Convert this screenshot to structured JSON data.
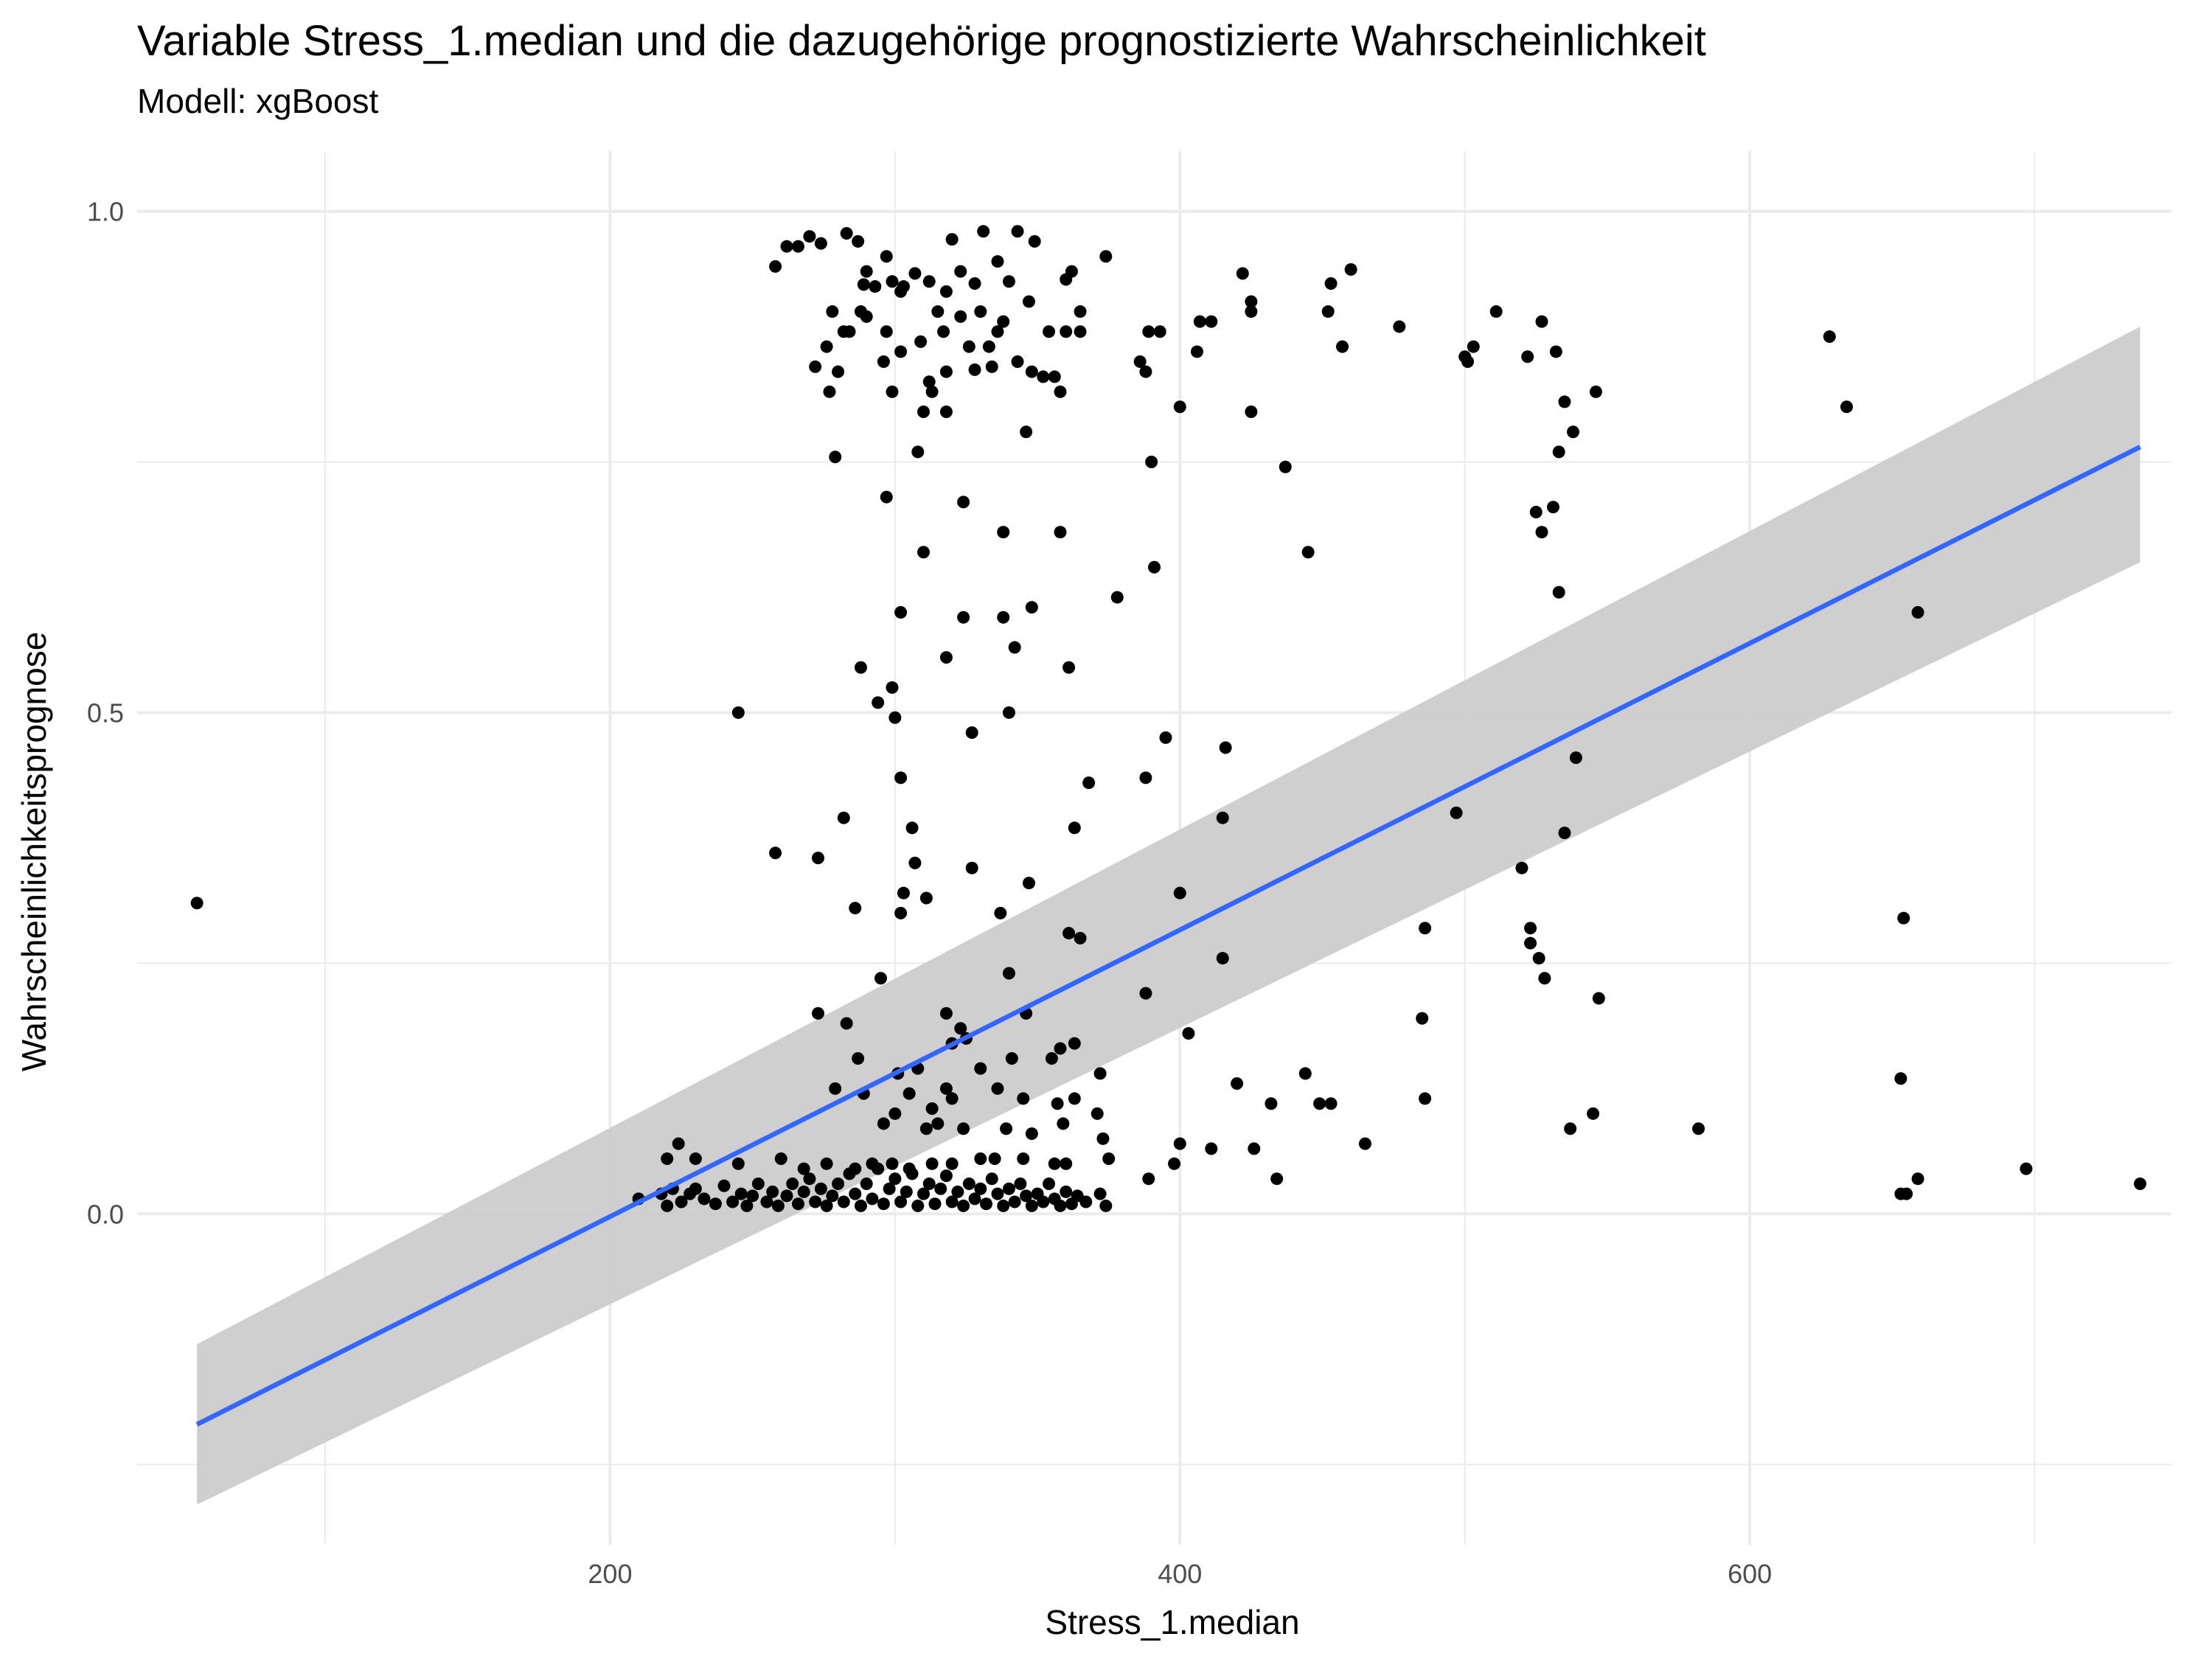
{
  "chart_data": {
    "type": "scatter",
    "title": "Variable Stress_1.median und die dazugehörige prognostizierte Wahrscheinlichkeit",
    "subtitle": "Modell: xgBoost",
    "xlabel": "Stress_1.median",
    "ylabel": "Wahrscheinlichkeitsprognose",
    "xlim": [
      34,
      748
    ],
    "ylim": [
      -0.33,
      1.06
    ],
    "x_ticks": [
      200,
      400,
      600
    ],
    "y_ticks": [
      0.0,
      0.5,
      1.0
    ],
    "x_tick_labels": [
      "200",
      "400",
      "600"
    ],
    "y_tick_labels": [
      "0.0",
      "0.5",
      "1.0"
    ],
    "grid": true,
    "colors": {
      "points": "#000000",
      "line": "#3366ff",
      "band": "#cccccc",
      "grid": "#ebebeb",
      "tick_text": "#4d4d4d"
    },
    "trend": {
      "x": [
        55,
        737
      ],
      "y": [
        -0.21,
        0.765
      ],
      "band_lower": [
        -0.29,
        0.65
      ],
      "band_upper": [
        -0.13,
        0.885
      ]
    },
    "points": [
      [
        55,
        0.31
      ],
      [
        245,
        0.5
      ],
      [
        258,
        0.945
      ],
      [
        262,
        0.965
      ],
      [
        266,
        0.965
      ],
      [
        270,
        0.975
      ],
      [
        274,
        0.968
      ],
      [
        283,
        0.978
      ],
      [
        287,
        0.97
      ],
      [
        297,
        0.955
      ],
      [
        320,
        0.972
      ],
      [
        331,
        0.98
      ],
      [
        343,
        0.98
      ],
      [
        349,
        0.97
      ],
      [
        374,
        0.955
      ],
      [
        290,
        0.94
      ],
      [
        312,
        0.93
      ],
      [
        323,
        0.94
      ],
      [
        336,
        0.95
      ],
      [
        362,
        0.94
      ],
      [
        422,
        0.938
      ],
      [
        453,
        0.928
      ],
      [
        460,
        0.942
      ],
      [
        289,
        0.927
      ],
      [
        293,
        0.925
      ],
      [
        299,
        0.93
      ],
      [
        303,
        0.925
      ],
      [
        307,
        0.938
      ],
      [
        318,
        0.92
      ],
      [
        328,
        0.928
      ],
      [
        340,
        0.93
      ],
      [
        360,
        0.932
      ],
      [
        278,
        0.9
      ],
      [
        288,
        0.9
      ],
      [
        302,
        0.92
      ],
      [
        315,
        0.9
      ],
      [
        330,
        0.9
      ],
      [
        347,
        0.91
      ],
      [
        365,
        0.9
      ],
      [
        425,
        0.91
      ],
      [
        425,
        0.9
      ],
      [
        452,
        0.9
      ],
      [
        511,
        0.9
      ],
      [
        284,
        0.88
      ],
      [
        290,
        0.895
      ],
      [
        297,
        0.88
      ],
      [
        317,
        0.88
      ],
      [
        323,
        0.895
      ],
      [
        338,
        0.89
      ],
      [
        354,
        0.88
      ],
      [
        360,
        0.88
      ],
      [
        365,
        0.88
      ],
      [
        389,
        0.88
      ],
      [
        393,
        0.88
      ],
      [
        407,
        0.89
      ],
      [
        411,
        0.89
      ],
      [
        477,
        0.885
      ],
      [
        527,
        0.89
      ],
      [
        628,
        0.875
      ],
      [
        276,
        0.865
      ],
      [
        282,
        0.88
      ],
      [
        302,
        0.86
      ],
      [
        309,
        0.87
      ],
      [
        326,
        0.865
      ],
      [
        333,
        0.865
      ],
      [
        336,
        0.88
      ],
      [
        406,
        0.86
      ],
      [
        457,
        0.865
      ],
      [
        500,
        0.855
      ],
      [
        503,
        0.865
      ],
      [
        522,
        0.855
      ],
      [
        532,
        0.86
      ],
      [
        280,
        0.84
      ],
      [
        296,
        0.85
      ],
      [
        318,
        0.84
      ],
      [
        328,
        0.842
      ],
      [
        334,
        0.845
      ],
      [
        343,
        0.85
      ],
      [
        348,
        0.84
      ],
      [
        352,
        0.835
      ],
      [
        356,
        0.835
      ],
      [
        386,
        0.85
      ],
      [
        388,
        0.84
      ],
      [
        501,
        0.85
      ],
      [
        272,
        0.845
      ],
      [
        277,
        0.82
      ],
      [
        299,
        0.82
      ],
      [
        313,
        0.82
      ],
      [
        312,
        0.83
      ],
      [
        310,
        0.8
      ],
      [
        318,
        0.8
      ],
      [
        358,
        0.82
      ],
      [
        400,
        0.805
      ],
      [
        425,
        0.8
      ],
      [
        535,
        0.81
      ],
      [
        546,
        0.82
      ],
      [
        634,
        0.805
      ],
      [
        279,
        0.755
      ],
      [
        308,
        0.76
      ],
      [
        346,
        0.78
      ],
      [
        390,
        0.75
      ],
      [
        437,
        0.745
      ],
      [
        538,
        0.78
      ],
      [
        533,
        0.76
      ],
      [
        297,
        0.715
      ],
      [
        324,
        0.71
      ],
      [
        338,
        0.68
      ],
      [
        358,
        0.68
      ],
      [
        525,
        0.7
      ],
      [
        531,
        0.705
      ],
      [
        527,
        0.68
      ],
      [
        310,
        0.66
      ],
      [
        391,
        0.645
      ],
      [
        445,
        0.66
      ],
      [
        302,
        0.6
      ],
      [
        324,
        0.595
      ],
      [
        338,
        0.595
      ],
      [
        348,
        0.605
      ],
      [
        378,
        0.615
      ],
      [
        533,
        0.62
      ],
      [
        659,
        0.6
      ],
      [
        318,
        0.555
      ],
      [
        342,
        0.565
      ],
      [
        288,
        0.545
      ],
      [
        299,
        0.525
      ],
      [
        294,
        0.51
      ],
      [
        300,
        0.495
      ],
      [
        327,
        0.48
      ],
      [
        340,
        0.5
      ],
      [
        361,
        0.545
      ],
      [
        302,
        0.435
      ],
      [
        368,
        0.43
      ],
      [
        388,
        0.435
      ],
      [
        395,
        0.475
      ],
      [
        416,
        0.465
      ],
      [
        539,
        0.455
      ],
      [
        258,
        0.36
      ],
      [
        273,
        0.355
      ],
      [
        282,
        0.395
      ],
      [
        306,
        0.385
      ],
      [
        307,
        0.35
      ],
      [
        303,
        0.32
      ],
      [
        327,
        0.345
      ],
      [
        347,
        0.33
      ],
      [
        363,
        0.385
      ],
      [
        400,
        0.32
      ],
      [
        415,
        0.395
      ],
      [
        497,
        0.4
      ],
      [
        535,
        0.38
      ],
      [
        286,
        0.305
      ],
      [
        302,
        0.3
      ],
      [
        311,
        0.315
      ],
      [
        337,
        0.3
      ],
      [
        361,
        0.28
      ],
      [
        365,
        0.275
      ],
      [
        486,
        0.285
      ],
      [
        520,
        0.345
      ],
      [
        523,
        0.285
      ],
      [
        523,
        0.27
      ],
      [
        526,
        0.255
      ],
      [
        528,
        0.235
      ],
      [
        654,
        0.295
      ],
      [
        295,
        0.235
      ],
      [
        340,
        0.24
      ],
      [
        388,
        0.22
      ],
      [
        415,
        0.255
      ],
      [
        547,
        0.215
      ],
      [
        273,
        0.2
      ],
      [
        283,
        0.19
      ],
      [
        318,
        0.2
      ],
      [
        323,
        0.185
      ],
      [
        325,
        0.175
      ],
      [
        320,
        0.17
      ],
      [
        346,
        0.2
      ],
      [
        363,
        0.17
      ],
      [
        358,
        0.165
      ],
      [
        403,
        0.18
      ],
      [
        485,
        0.195
      ],
      [
        287,
        0.155
      ],
      [
        301,
        0.14
      ],
      [
        308,
        0.145
      ],
      [
        330,
        0.145
      ],
      [
        341,
        0.155
      ],
      [
        355,
        0.155
      ],
      [
        372,
        0.14
      ],
      [
        420,
        0.13
      ],
      [
        444,
        0.14
      ],
      [
        653,
        0.135
      ],
      [
        279,
        0.125
      ],
      [
        289,
        0.12
      ],
      [
        305,
        0.12
      ],
      [
        313,
        0.105
      ],
      [
        318,
        0.125
      ],
      [
        320,
        0.115
      ],
      [
        336,
        0.125
      ],
      [
        345,
        0.115
      ],
      [
        357,
        0.11
      ],
      [
        363,
        0.115
      ],
      [
        371,
        0.1
      ],
      [
        432,
        0.11
      ],
      [
        449,
        0.11
      ],
      [
        453,
        0.11
      ],
      [
        486,
        0.115
      ],
      [
        545,
        0.1
      ],
      [
        296,
        0.09
      ],
      [
        300,
        0.1
      ],
      [
        311,
        0.085
      ],
      [
        315,
        0.09
      ],
      [
        324,
        0.085
      ],
      [
        339,
        0.085
      ],
      [
        348,
        0.08
      ],
      [
        359,
        0.09
      ],
      [
        373,
        0.075
      ],
      [
        400,
        0.07
      ],
      [
        411,
        0.065
      ],
      [
        426,
        0.065
      ],
      [
        465,
        0.07
      ],
      [
        537,
        0.085
      ],
      [
        582,
        0.085
      ],
      [
        224,
        0.07
      ],
      [
        220,
        0.055
      ],
      [
        230,
        0.055
      ],
      [
        245,
        0.05
      ],
      [
        260,
        0.055
      ],
      [
        268,
        0.045
      ],
      [
        276,
        0.05
      ],
      [
        286,
        0.045
      ],
      [
        292,
        0.05
      ],
      [
        299,
        0.05
      ],
      [
        305,
        0.045
      ],
      [
        313,
        0.05
      ],
      [
        320,
        0.05
      ],
      [
        330,
        0.055
      ],
      [
        335,
        0.055
      ],
      [
        345,
        0.055
      ],
      [
        356,
        0.05
      ],
      [
        360,
        0.05
      ],
      [
        375,
        0.055
      ],
      [
        398,
        0.05
      ],
      [
        210,
        0.015
      ],
      [
        218,
        0.02
      ],
      [
        220,
        0.008
      ],
      [
        222,
        0.025
      ],
      [
        225,
        0.012
      ],
      [
        228,
        0.02
      ],
      [
        230,
        0.025
      ],
      [
        233,
        0.015
      ],
      [
        237,
        0.01
      ],
      [
        240,
        0.028
      ],
      [
        243,
        0.012
      ],
      [
        246,
        0.02
      ],
      [
        248,
        0.008
      ],
      [
        250,
        0.018
      ],
      [
        252,
        0.03
      ],
      [
        255,
        0.012
      ],
      [
        257,
        0.022
      ],
      [
        259,
        0.008
      ],
      [
        262,
        0.018
      ],
      [
        264,
        0.03
      ],
      [
        266,
        0.01
      ],
      [
        268,
        0.022
      ],
      [
        270,
        0.035
      ],
      [
        272,
        0.012
      ],
      [
        274,
        0.025
      ],
      [
        276,
        0.008
      ],
      [
        278,
        0.018
      ],
      [
        280,
        0.03
      ],
      [
        282,
        0.012
      ],
      [
        284,
        0.04
      ],
      [
        286,
        0.02
      ],
      [
        288,
        0.008
      ],
      [
        290,
        0.03
      ],
      [
        292,
        0.015
      ],
      [
        294,
        0.045
      ],
      [
        296,
        0.01
      ],
      [
        298,
        0.025
      ],
      [
        300,
        0.035
      ],
      [
        302,
        0.012
      ],
      [
        304,
        0.022
      ],
      [
        306,
        0.04
      ],
      [
        308,
        0.008
      ],
      [
        310,
        0.02
      ],
      [
        312,
        0.03
      ],
      [
        314,
        0.01
      ],
      [
        316,
        0.025
      ],
      [
        318,
        0.038
      ],
      [
        320,
        0.012
      ],
      [
        322,
        0.022
      ],
      [
        324,
        0.008
      ],
      [
        326,
        0.03
      ],
      [
        328,
        0.015
      ],
      [
        330,
        0.025
      ],
      [
        332,
        0.01
      ],
      [
        334,
        0.035
      ],
      [
        336,
        0.02
      ],
      [
        338,
        0.008
      ],
      [
        340,
        0.025
      ],
      [
        342,
        0.012
      ],
      [
        344,
        0.03
      ],
      [
        346,
        0.018
      ],
      [
        348,
        0.008
      ],
      [
        350,
        0.02
      ],
      [
        352,
        0.012
      ],
      [
        354,
        0.03
      ],
      [
        356,
        0.015
      ],
      [
        358,
        0.008
      ],
      [
        360,
        0.022
      ],
      [
        362,
        0.01
      ],
      [
        364,
        0.018
      ],
      [
        367,
        0.012
      ],
      [
        372,
        0.02
      ],
      [
        374,
        0.008
      ],
      [
        389,
        0.035
      ],
      [
        434,
        0.035
      ],
      [
        653,
        0.02
      ],
      [
        655,
        0.02
      ],
      [
        659,
        0.035
      ],
      [
        697,
        0.045
      ],
      [
        737,
        0.03
      ]
    ]
  }
}
